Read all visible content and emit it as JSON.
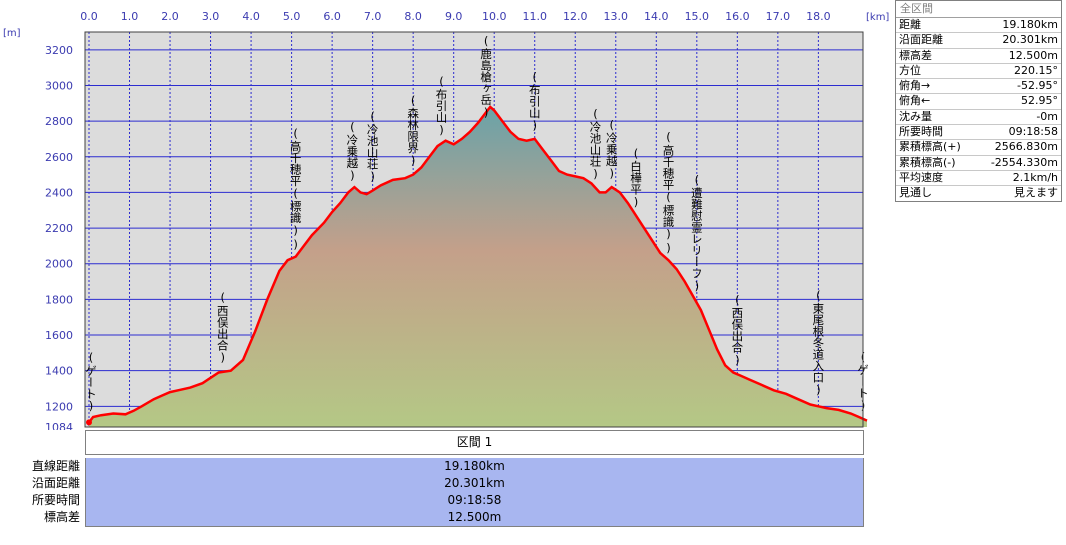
{
  "chart_data": {
    "type": "area",
    "xlabel_unit": "[km]",
    "ylabel_unit": "[m]",
    "x_ticks": [
      "0.0",
      "1.0",
      "2.0",
      "3.0",
      "4.0",
      "5.0",
      "6.0",
      "7.0",
      "8.0",
      "9.0",
      "10.0",
      "11.0",
      "12.0",
      "13.0",
      "14.0",
      "15.0",
      "16.0",
      "17.0",
      "18.0"
    ],
    "y_ticks": [
      "3200",
      "3000",
      "2800",
      "2600",
      "2400",
      "2200",
      "2000",
      "1800",
      "1600",
      "1400",
      "1200",
      "1084"
    ],
    "xlim": [
      0,
      19.2
    ],
    "ylim": [
      1084,
      3300
    ],
    "grid": true,
    "series": [
      {
        "x": [
          0.0,
          0.1,
          0.3,
          0.6,
          0.9,
          1.1,
          1.3,
          1.6,
          1.8,
          2.0,
          2.2,
          2.5,
          2.8,
          3.0,
          3.2,
          3.5,
          3.8,
          4.1,
          4.4,
          4.7,
          4.9,
          5.1,
          5.3,
          5.5,
          5.8,
          6.0,
          6.2,
          6.4,
          6.55,
          6.7,
          6.85,
          7.0,
          7.2,
          7.5,
          7.8,
          8.0,
          8.2,
          8.4,
          8.6,
          8.8,
          9.0,
          9.2,
          9.4,
          9.6,
          9.8,
          9.9,
          10.0,
          10.2,
          10.4,
          10.6,
          10.8,
          11.0,
          11.2,
          11.4,
          11.6,
          11.8,
          12.0,
          12.2,
          12.4,
          12.6,
          12.75,
          12.9,
          13.1,
          13.3,
          13.5,
          13.7,
          13.9,
          14.1,
          14.3,
          14.5,
          14.7,
          14.9,
          15.1,
          15.3,
          15.5,
          15.7,
          15.9,
          16.1,
          16.3,
          16.6,
          16.9,
          17.2,
          17.5,
          17.8,
          18.0,
          18.2,
          18.5,
          18.8,
          19.0,
          19.2
        ],
        "values": [
          1110,
          1140,
          1150,
          1160,
          1155,
          1175,
          1200,
          1240,
          1260,
          1280,
          1290,
          1305,
          1330,
          1360,
          1390,
          1400,
          1460,
          1620,
          1800,
          1960,
          2020,
          2040,
          2100,
          2160,
          2230,
          2290,
          2340,
          2400,
          2430,
          2400,
          2390,
          2410,
          2440,
          2470,
          2480,
          2500,
          2540,
          2600,
          2660,
          2690,
          2670,
          2700,
          2740,
          2790,
          2850,
          2880,
          2860,
          2800,
          2740,
          2700,
          2690,
          2700,
          2640,
          2580,
          2520,
          2500,
          2490,
          2480,
          2450,
          2400,
          2400,
          2430,
          2400,
          2340,
          2270,
          2200,
          2130,
          2060,
          2020,
          1970,
          1900,
          1820,
          1740,
          1630,
          1520,
          1430,
          1390,
          1370,
          1350,
          1320,
          1290,
          1270,
          1240,
          1210,
          1200,
          1190,
          1180,
          1160,
          1140,
          1120
        ]
      }
    ],
    "annotations": [
      {
        "x": 0.05,
        "label": "(ゲート)"
      },
      {
        "x": 3.3,
        "label": "(西俣出合)"
      },
      {
        "x": 5.1,
        "label": "(高千穂平(標識))"
      },
      {
        "x": 6.5,
        "label": "(冷乗越)"
      },
      {
        "x": 7.0,
        "label": "(冷池山荘)"
      },
      {
        "x": 8.0,
        "label": "(森林限界)"
      },
      {
        "x": 8.7,
        "label": "(布引山)"
      },
      {
        "x": 9.8,
        "label": "(鹿島槍ヶ岳)"
      },
      {
        "x": 11.0,
        "label": "(布引山)"
      },
      {
        "x": 12.5,
        "label": "(冷池山荘)"
      },
      {
        "x": 12.9,
        "label": "(冷乗越)"
      },
      {
        "x": 13.5,
        "label": "(白樺平)"
      },
      {
        "x": 14.3,
        "label": "(高千穂平(標識))"
      },
      {
        "x": 15.0,
        "label": "(遭難慰霊レリーフ)"
      },
      {
        "x": 16.0,
        "label": "(西俣出合)"
      },
      {
        "x": 18.0,
        "label": "(東尾根冬道入口)"
      },
      {
        "x": 19.1,
        "label": "(ゲート)"
      }
    ]
  },
  "stats": {
    "title": "全区間",
    "rows": [
      {
        "label": "距離",
        "value": "19.180km"
      },
      {
        "label": "沿面距離",
        "value": "20.301km"
      },
      {
        "label": "標高差",
        "value": "12.500m"
      },
      {
        "label": "方位",
        "value": "220.15°"
      },
      {
        "label": "俯角→",
        "value": "-52.95°"
      },
      {
        "label": "俯角←",
        "value": "52.95°"
      },
      {
        "label": "沈み量",
        "value": "-0m"
      },
      {
        "label": "所要時間",
        "value": "09:18:58"
      },
      {
        "label": "累積標高(+)",
        "value": "2566.830m"
      },
      {
        "label": "累積標高(-)",
        "value": "-2554.330m"
      },
      {
        "label": "平均速度",
        "value": "2.1km/h"
      },
      {
        "label": "見通し",
        "value": "見えます"
      }
    ]
  },
  "section": {
    "header": "区間 1",
    "rows": [
      {
        "label": "直線距離",
        "value": "19.180km"
      },
      {
        "label": "沿面距離",
        "value": "20.301km"
      },
      {
        "label": "所要時間",
        "value": "09:18:58"
      },
      {
        "label": "標高差",
        "value": "12.500m"
      }
    ]
  },
  "colors": {
    "plot_bg": "#d8d8d8",
    "grid": "#2c2cd0",
    "profile_line": "#ff0000",
    "fill_top": "#7aa8a8",
    "fill_mid": "#c8a888",
    "fill_bottom": "#b0c890"
  }
}
